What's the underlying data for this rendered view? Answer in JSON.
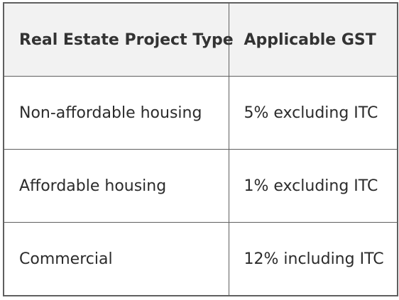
{
  "table": {
    "headers": [
      "Real Estate Project Type",
      "Applicable GST"
    ],
    "rows": [
      [
        "Non-affordable housing",
        "5% excluding ITC"
      ],
      [
        "Affordable housing",
        "1% excluding ITC"
      ],
      [
        "Commercial",
        "12% including ITC"
      ]
    ]
  }
}
